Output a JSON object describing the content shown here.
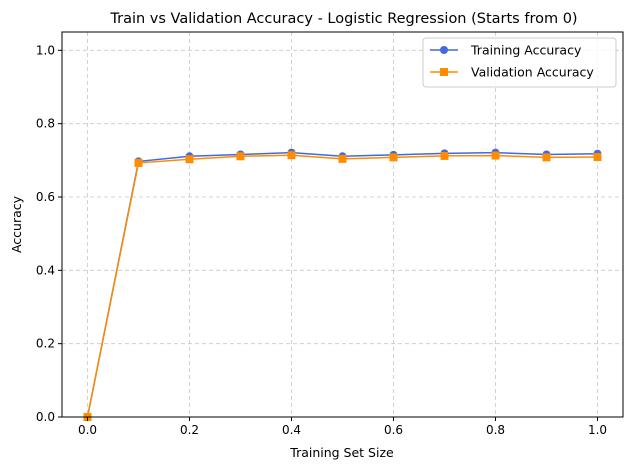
{
  "chart_data": {
    "type": "line",
    "title": "Train vs Validation Accuracy - Logistic Regression (Starts from 0)",
    "xlabel": "Training Set Size",
    "ylabel": "Accuracy",
    "xlim": [
      -0.05,
      1.05
    ],
    "ylim": [
      0.0,
      1.05
    ],
    "xticks": [
      0.0,
      0.2,
      0.4,
      0.6,
      0.8,
      1.0
    ],
    "xtick_labels": [
      "0.0",
      "0.2",
      "0.4",
      "0.6",
      "0.8",
      "1.0"
    ],
    "yticks": [
      0.0,
      0.2,
      0.4,
      0.6,
      0.8,
      1.0
    ],
    "ytick_labels": [
      "0.0",
      "0.2",
      "0.4",
      "0.6",
      "0.8",
      "1.0"
    ],
    "grid": true,
    "legend_position": "top-right",
    "x": [
      0.0,
      0.1,
      0.2,
      0.3,
      0.4,
      0.5,
      0.6,
      0.7,
      0.8,
      0.9,
      1.0
    ],
    "series": [
      {
        "name": "Training Accuracy",
        "color": "#4169E1",
        "marker": "circle",
        "values": [
          0.0,
          0.697,
          0.711,
          0.716,
          0.721,
          0.711,
          0.715,
          0.719,
          0.721,
          0.716,
          0.718
        ]
      },
      {
        "name": "Validation Accuracy",
        "color": "#FF8C00",
        "marker": "square",
        "values": [
          0.0,
          0.693,
          0.703,
          0.711,
          0.714,
          0.704,
          0.708,
          0.712,
          0.713,
          0.708,
          0.709
        ]
      }
    ]
  }
}
